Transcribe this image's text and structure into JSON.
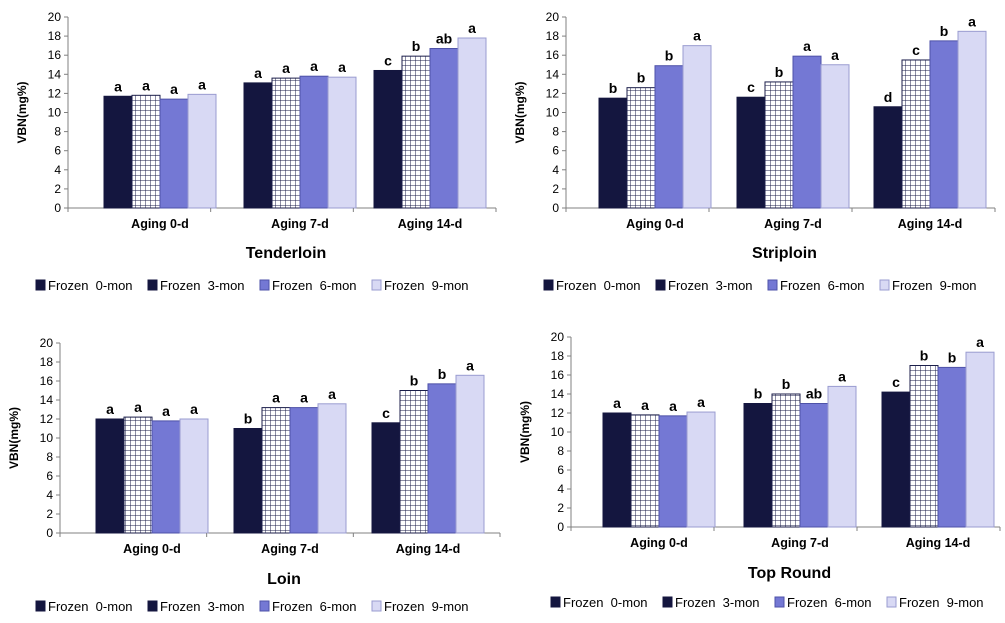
{
  "legend_labels": [
    "Frozen  0-mon",
    "Frozen  3-mon",
    "Frozen  6-mon",
    "Frozen  9-mon"
  ],
  "colors": {
    "frozen_0": "#14163f",
    "frozen_3_bg": "#ffffff",
    "frozen_3_grid": "#1b1e4a",
    "frozen_6": "#7478d4",
    "frozen_9": "#d8d9f4",
    "axis": "#808080",
    "text": "#000000"
  },
  "chart_data": [
    {
      "type": "bar",
      "title": "Tenderloin",
      "ylabel": "VBN(mg%)",
      "xlabel": "",
      "ylim": [
        0,
        20
      ],
      "yticks": [
        "0",
        "2",
        "4",
        "6",
        "8",
        "10",
        "12",
        "14",
        "16",
        "18",
        "20"
      ],
      "categories": [
        "Aging  0-d",
        "Aging  7-d",
        "Aging  14-d"
      ],
      "series": [
        {
          "name": "Frozen  0-mon",
          "values": [
            11.7,
            13.1,
            14.4
          ],
          "labels": [
            "a",
            "a",
            "c"
          ]
        },
        {
          "name": "Frozen  3-mon",
          "values": [
            11.8,
            13.6,
            15.9
          ],
          "labels": [
            "a",
            "a",
            "b"
          ]
        },
        {
          "name": "Frozen  6-mon",
          "values": [
            11.4,
            13.8,
            16.7
          ],
          "labels": [
            "a",
            "a",
            "ab"
          ]
        },
        {
          "name": "Frozen  9-mon",
          "values": [
            11.9,
            13.7,
            17.8
          ],
          "labels": [
            "a",
            "a",
            "a"
          ]
        }
      ],
      "legend": "bottom"
    },
    {
      "type": "bar",
      "title": "Striploin",
      "ylabel": "VBN(mg%)",
      "xlabel": "",
      "ylim": [
        0,
        20
      ],
      "yticks": [
        "0",
        "2",
        "4",
        "6",
        "8",
        "10",
        "12",
        "14",
        "16",
        "18",
        "20"
      ],
      "categories": [
        "Aging  0-d",
        "Aging  7-d",
        "Aging  14-d"
      ],
      "series": [
        {
          "name": "Frozen  0-mon",
          "values": [
            11.5,
            11.6,
            10.6
          ],
          "labels": [
            "b",
            "c",
            "d"
          ]
        },
        {
          "name": "Frozen  3-mon",
          "values": [
            12.6,
            13.2,
            15.5
          ],
          "labels": [
            "b",
            "b",
            "c"
          ]
        },
        {
          "name": "Frozen  6-mon",
          "values": [
            14.9,
            15.9,
            17.5
          ],
          "labels": [
            "b",
            "a",
            "b"
          ]
        },
        {
          "name": "Frozen  9-mon",
          "values": [
            17.0,
            15.0,
            18.5
          ],
          "labels": [
            "a",
            "a",
            "a"
          ]
        }
      ],
      "legend": "bottom"
    },
    {
      "type": "bar",
      "title": "Loin",
      "ylabel": "VBN(mg%)",
      "xlabel": "",
      "ylim": [
        0,
        20
      ],
      "yticks": [
        "0",
        "2",
        "4",
        "6",
        "8",
        "10",
        "12",
        "14",
        "16",
        "18",
        "20"
      ],
      "categories": [
        "Aging  0-d",
        "Aging  7-d",
        "Aging  14-d"
      ],
      "series": [
        {
          "name": "Frozen  0-mon",
          "values": [
            12.0,
            11.0,
            11.6
          ],
          "labels": [
            "a",
            "b",
            "c"
          ]
        },
        {
          "name": "Frozen  3-mon",
          "values": [
            12.2,
            13.2,
            15.0
          ],
          "labels": [
            "a",
            "a",
            "b"
          ]
        },
        {
          "name": "Frozen  6-mon",
          "values": [
            11.8,
            13.2,
            15.7
          ],
          "labels": [
            "a",
            "a",
            "b"
          ]
        },
        {
          "name": "Frozen  9-mon",
          "values": [
            12.0,
            13.6,
            16.6
          ],
          "labels": [
            "a",
            "a",
            "a"
          ]
        }
      ],
      "legend": "bottom"
    },
    {
      "type": "bar",
      "title": "Top Round",
      "ylabel": "VBN(mg%)",
      "xlabel": "",
      "ylim": [
        0,
        20
      ],
      "yticks": [
        "0",
        "2",
        "4",
        "6",
        "8",
        "10",
        "12",
        "14",
        "16",
        "18",
        "20"
      ],
      "categories": [
        "Aging  0-d",
        "Aging  7-d",
        "Aging  14-d"
      ],
      "series": [
        {
          "name": "Frozen  0-mon",
          "values": [
            12.0,
            13.0,
            14.2
          ],
          "labels": [
            "a",
            "b",
            "c"
          ]
        },
        {
          "name": "Frozen  3-mon",
          "values": [
            11.8,
            14.0,
            17.0
          ],
          "labels": [
            "a",
            "b",
            "b"
          ]
        },
        {
          "name": "Frozen  6-mon",
          "values": [
            11.7,
            13.0,
            16.8
          ],
          "labels": [
            "a",
            "ab",
            "b"
          ]
        },
        {
          "name": "Frozen  9-mon",
          "values": [
            12.1,
            14.8,
            18.4
          ],
          "labels": [
            "a",
            "a",
            "a"
          ]
        }
      ],
      "legend": "bottom"
    }
  ]
}
